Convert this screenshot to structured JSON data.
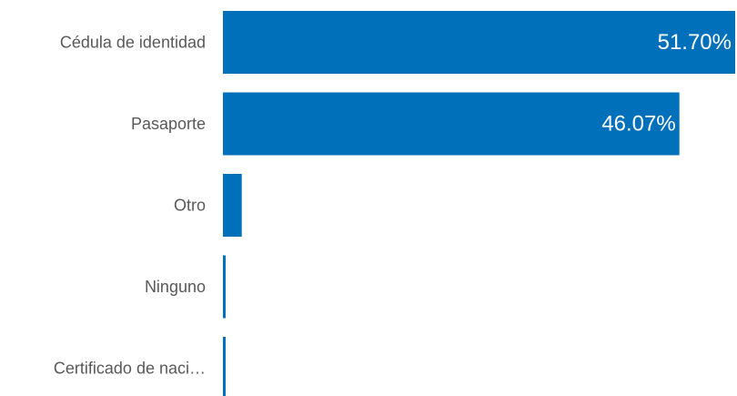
{
  "chart_data": {
    "type": "bar",
    "orientation": "horizontal",
    "categories": [
      "Cédula de identidad",
      "Pasaporte",
      "Otro",
      "Ninguno",
      "Certificado de naci…"
    ],
    "values": [
      51.7,
      46.07,
      1.9,
      0.2,
      0.2
    ],
    "data_labels": [
      "51.70%",
      "46.07%",
      "",
      "",
      ""
    ],
    "bar_color": "#0070BA",
    "label_color": "#595959",
    "xlim": [
      0,
      51.7
    ],
    "title": "",
    "xlabel": "",
    "ylabel": "",
    "grid": false,
    "legend": "none"
  }
}
